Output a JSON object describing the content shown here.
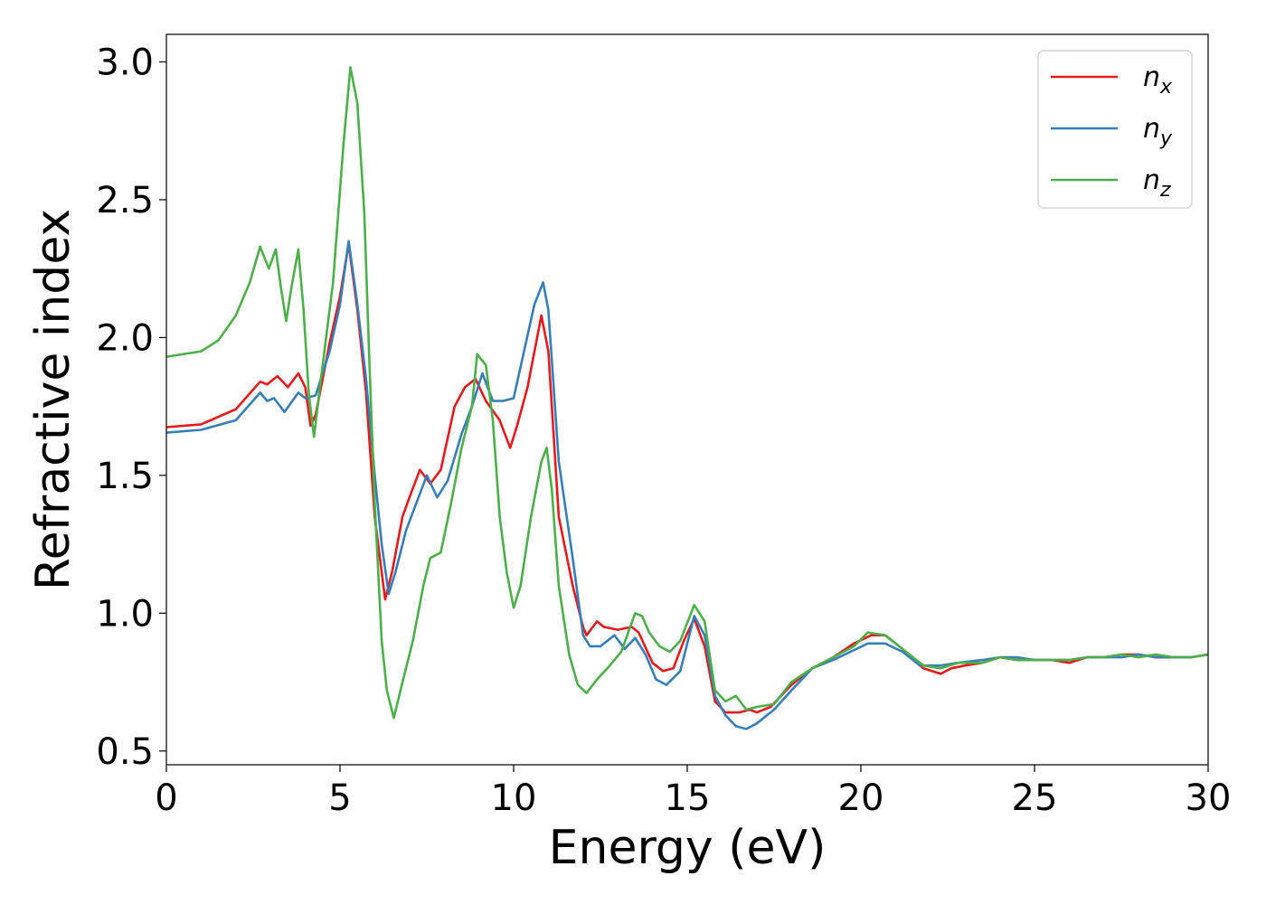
{
  "chart_data": {
    "type": "line",
    "title": "",
    "xlabel": "Energy (eV)",
    "ylabel": "Refractive index",
    "xlim": [
      0,
      30
    ],
    "ylim": [
      0.45,
      3.1
    ],
    "x_ticks": [
      0,
      5,
      10,
      15,
      20,
      25,
      30
    ],
    "y_ticks": [
      0.5,
      1.0,
      1.5,
      2.0,
      2.5,
      3.0
    ],
    "x_tick_labels": [
      "0",
      "5",
      "10",
      "15",
      "20",
      "25",
      "30"
    ],
    "y_tick_labels": [
      "0.5",
      "1.0",
      "1.5",
      "2.0",
      "2.5",
      "3.0"
    ],
    "grid": false,
    "legend_position": "top-right",
    "series": [
      {
        "name": "n_x",
        "legend_base": "n",
        "legend_sub": "x",
        "color": "#e41a1c",
        "points": [
          [
            0,
            1.675
          ],
          [
            1,
            1.685
          ],
          [
            2,
            1.74
          ],
          [
            2.7,
            1.84
          ],
          [
            2.9,
            1.83
          ],
          [
            3.2,
            1.86
          ],
          [
            3.5,
            1.82
          ],
          [
            3.8,
            1.87
          ],
          [
            4.0,
            1.82
          ],
          [
            4.15,
            1.68
          ],
          [
            4.3,
            1.72
          ],
          [
            4.7,
            1.98
          ],
          [
            5.0,
            2.15
          ],
          [
            5.25,
            2.34
          ],
          [
            5.5,
            2.1
          ],
          [
            5.75,
            1.8
          ],
          [
            6.0,
            1.35
          ],
          [
            6.3,
            1.05
          ],
          [
            6.5,
            1.15
          ],
          [
            6.8,
            1.35
          ],
          [
            7.0,
            1.42
          ],
          [
            7.3,
            1.52
          ],
          [
            7.6,
            1.47
          ],
          [
            7.9,
            1.52
          ],
          [
            8.3,
            1.75
          ],
          [
            8.6,
            1.82
          ],
          [
            8.9,
            1.85
          ],
          [
            9.2,
            1.77
          ],
          [
            9.6,
            1.7
          ],
          [
            9.9,
            1.6
          ],
          [
            10.1,
            1.68
          ],
          [
            10.4,
            1.82
          ],
          [
            10.8,
            2.08
          ],
          [
            11.0,
            1.95
          ],
          [
            11.3,
            1.35
          ],
          [
            11.7,
            1.1
          ],
          [
            12.0,
            0.95
          ],
          [
            12.1,
            0.92
          ],
          [
            12.4,
            0.97
          ],
          [
            12.6,
            0.95
          ],
          [
            13.0,
            0.94
          ],
          [
            13.4,
            0.95
          ],
          [
            13.6,
            0.93
          ],
          [
            14.0,
            0.82
          ],
          [
            14.3,
            0.79
          ],
          [
            14.6,
            0.8
          ],
          [
            14.9,
            0.9
          ],
          [
            15.2,
            0.98
          ],
          [
            15.5,
            0.88
          ],
          [
            15.8,
            0.68
          ],
          [
            16.1,
            0.64
          ],
          [
            16.5,
            0.64
          ],
          [
            16.8,
            0.65
          ],
          [
            17.0,
            0.64
          ],
          [
            17.4,
            0.66
          ],
          [
            18.0,
            0.74
          ],
          [
            18.6,
            0.8
          ],
          [
            19.2,
            0.84
          ],
          [
            19.8,
            0.89
          ],
          [
            20.3,
            0.92
          ],
          [
            20.7,
            0.92
          ],
          [
            21.2,
            0.87
          ],
          [
            21.8,
            0.8
          ],
          [
            22.3,
            0.78
          ],
          [
            22.6,
            0.8
          ],
          [
            23.0,
            0.81
          ],
          [
            23.5,
            0.82
          ],
          [
            24.0,
            0.84
          ],
          [
            24.5,
            0.83
          ],
          [
            25.0,
            0.83
          ],
          [
            25.5,
            0.83
          ],
          [
            26.0,
            0.82
          ],
          [
            26.5,
            0.84
          ],
          [
            27.0,
            0.84
          ],
          [
            27.5,
            0.85
          ],
          [
            28.0,
            0.85
          ],
          [
            28.5,
            0.84
          ],
          [
            29.0,
            0.84
          ],
          [
            29.5,
            0.84
          ],
          [
            30.0,
            0.85
          ]
        ]
      },
      {
        "name": "n_y",
        "legend_base": "n",
        "legend_sub": "y",
        "color": "#377eb8",
        "points": [
          [
            0,
            1.655
          ],
          [
            1,
            1.665
          ],
          [
            2,
            1.7
          ],
          [
            2.7,
            1.8
          ],
          [
            2.9,
            1.77
          ],
          [
            3.1,
            1.78
          ],
          [
            3.4,
            1.73
          ],
          [
            3.8,
            1.8
          ],
          [
            4.0,
            1.78
          ],
          [
            4.3,
            1.79
          ],
          [
            4.7,
            1.95
          ],
          [
            5.0,
            2.12
          ],
          [
            5.25,
            2.35
          ],
          [
            5.5,
            2.12
          ],
          [
            5.75,
            1.85
          ],
          [
            6.0,
            1.5
          ],
          [
            6.2,
            1.25
          ],
          [
            6.4,
            1.07
          ],
          [
            6.6,
            1.15
          ],
          [
            6.9,
            1.3
          ],
          [
            7.2,
            1.4
          ],
          [
            7.5,
            1.5
          ],
          [
            7.8,
            1.42
          ],
          [
            8.1,
            1.48
          ],
          [
            8.5,
            1.65
          ],
          [
            8.8,
            1.75
          ],
          [
            9.1,
            1.87
          ],
          [
            9.4,
            1.77
          ],
          [
            9.7,
            1.77
          ],
          [
            10.0,
            1.78
          ],
          [
            10.3,
            1.95
          ],
          [
            10.6,
            2.12
          ],
          [
            10.85,
            2.2
          ],
          [
            11.0,
            2.1
          ],
          [
            11.3,
            1.55
          ],
          [
            11.7,
            1.2
          ],
          [
            12.0,
            0.92
          ],
          [
            12.2,
            0.88
          ],
          [
            12.5,
            0.88
          ],
          [
            12.9,
            0.92
          ],
          [
            13.2,
            0.87
          ],
          [
            13.5,
            0.91
          ],
          [
            13.8,
            0.85
          ],
          [
            14.1,
            0.76
          ],
          [
            14.4,
            0.74
          ],
          [
            14.8,
            0.79
          ],
          [
            15.2,
            0.99
          ],
          [
            15.5,
            0.92
          ],
          [
            15.8,
            0.7
          ],
          [
            16.1,
            0.63
          ],
          [
            16.4,
            0.59
          ],
          [
            16.7,
            0.58
          ],
          [
            17.0,
            0.6
          ],
          [
            17.5,
            0.65
          ],
          [
            18.0,
            0.72
          ],
          [
            18.6,
            0.8
          ],
          [
            19.2,
            0.83
          ],
          [
            19.7,
            0.86
          ],
          [
            20.2,
            0.89
          ],
          [
            20.7,
            0.89
          ],
          [
            21.2,
            0.86
          ],
          [
            21.7,
            0.81
          ],
          [
            22.3,
            0.81
          ],
          [
            22.8,
            0.82
          ],
          [
            23.5,
            0.83
          ],
          [
            24.0,
            0.84
          ],
          [
            24.5,
            0.84
          ],
          [
            25.0,
            0.83
          ],
          [
            25.5,
            0.83
          ],
          [
            26.0,
            0.83
          ],
          [
            26.5,
            0.84
          ],
          [
            27.0,
            0.84
          ],
          [
            27.5,
            0.84
          ],
          [
            28.0,
            0.85
          ],
          [
            28.5,
            0.84
          ],
          [
            29.0,
            0.84
          ],
          [
            29.5,
            0.84
          ],
          [
            30.0,
            0.85
          ]
        ]
      },
      {
        "name": "n_z",
        "legend_base": "n",
        "legend_sub": "z",
        "color": "#4daf4a",
        "points": [
          [
            0,
            1.93
          ],
          [
            1,
            1.95
          ],
          [
            1.5,
            1.99
          ],
          [
            2.0,
            2.08
          ],
          [
            2.4,
            2.2
          ],
          [
            2.7,
            2.33
          ],
          [
            2.95,
            2.25
          ],
          [
            3.15,
            2.32
          ],
          [
            3.3,
            2.18
          ],
          [
            3.45,
            2.06
          ],
          [
            3.6,
            2.18
          ],
          [
            3.8,
            2.32
          ],
          [
            3.95,
            2.1
          ],
          [
            4.1,
            1.8
          ],
          [
            4.25,
            1.64
          ],
          [
            4.45,
            1.85
          ],
          [
            4.8,
            2.2
          ],
          [
            5.1,
            2.7
          ],
          [
            5.3,
            2.98
          ],
          [
            5.5,
            2.85
          ],
          [
            5.7,
            2.45
          ],
          [
            5.85,
            1.9
          ],
          [
            6.0,
            1.4
          ],
          [
            6.2,
            0.9
          ],
          [
            6.35,
            0.72
          ],
          [
            6.55,
            0.62
          ],
          [
            6.8,
            0.75
          ],
          [
            7.1,
            0.9
          ],
          [
            7.4,
            1.1
          ],
          [
            7.6,
            1.2
          ],
          [
            7.9,
            1.22
          ],
          [
            8.2,
            1.4
          ],
          [
            8.5,
            1.6
          ],
          [
            8.8,
            1.75
          ],
          [
            8.95,
            1.94
          ],
          [
            9.2,
            1.9
          ],
          [
            9.4,
            1.7
          ],
          [
            9.6,
            1.35
          ],
          [
            9.8,
            1.15
          ],
          [
            10.0,
            1.02
          ],
          [
            10.2,
            1.1
          ],
          [
            10.5,
            1.35
          ],
          [
            10.8,
            1.55
          ],
          [
            10.95,
            1.6
          ],
          [
            11.1,
            1.45
          ],
          [
            11.3,
            1.1
          ],
          [
            11.6,
            0.85
          ],
          [
            11.85,
            0.74
          ],
          [
            12.1,
            0.71
          ],
          [
            12.4,
            0.76
          ],
          [
            12.7,
            0.8
          ],
          [
            13.1,
            0.86
          ],
          [
            13.5,
            1.0
          ],
          [
            13.7,
            0.99
          ],
          [
            13.9,
            0.93
          ],
          [
            14.2,
            0.88
          ],
          [
            14.5,
            0.86
          ],
          [
            14.8,
            0.9
          ],
          [
            15.2,
            1.03
          ],
          [
            15.5,
            0.97
          ],
          [
            15.8,
            0.72
          ],
          [
            16.1,
            0.68
          ],
          [
            16.4,
            0.7
          ],
          [
            16.7,
            0.65
          ],
          [
            17.0,
            0.66
          ],
          [
            17.5,
            0.67
          ],
          [
            18.0,
            0.75
          ],
          [
            18.6,
            0.8
          ],
          [
            19.2,
            0.84
          ],
          [
            19.8,
            0.88
          ],
          [
            20.2,
            0.93
          ],
          [
            20.7,
            0.92
          ],
          [
            21.2,
            0.87
          ],
          [
            21.8,
            0.81
          ],
          [
            22.3,
            0.8
          ],
          [
            22.8,
            0.82
          ],
          [
            23.5,
            0.82
          ],
          [
            24.0,
            0.84
          ],
          [
            24.5,
            0.83
          ],
          [
            25.0,
            0.83
          ],
          [
            25.5,
            0.83
          ],
          [
            26.0,
            0.83
          ],
          [
            26.5,
            0.84
          ],
          [
            27.0,
            0.84
          ],
          [
            27.5,
            0.85
          ],
          [
            28.0,
            0.84
          ],
          [
            28.5,
            0.85
          ],
          [
            29.0,
            0.84
          ],
          [
            29.5,
            0.84
          ],
          [
            30.0,
            0.85
          ]
        ]
      }
    ]
  }
}
